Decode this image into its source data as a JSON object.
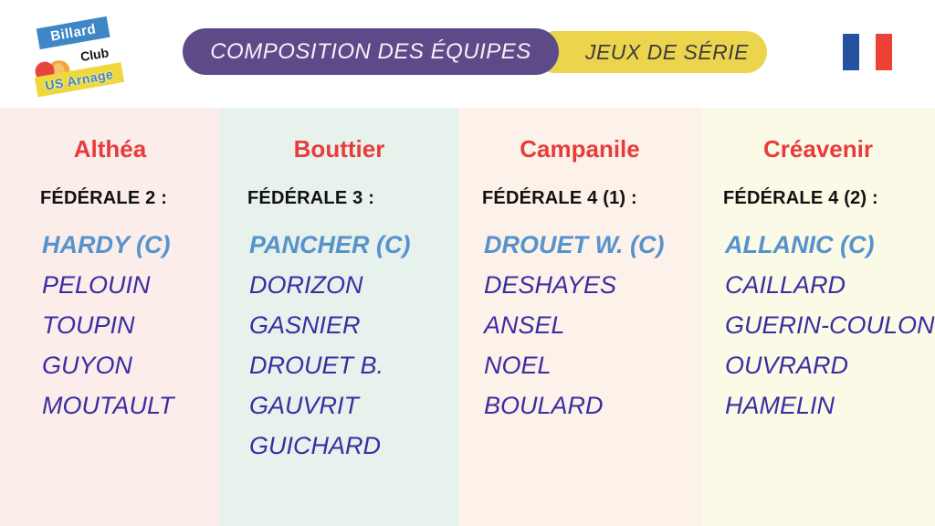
{
  "logo": {
    "line1": "Billard",
    "line2": "Club",
    "line3": "US Arnage",
    "band_blue_color": "#3e86c6",
    "band_yellow_color": "#efd83d",
    "ball_red_color": "#e6453f",
    "ball_orange_color": "#f2a43b"
  },
  "header": {
    "title": "COMPOSITION DES ÉQUIPES",
    "subtitle": "JEUX DE SÉRIE",
    "title_bg": "#5d4b89",
    "title_text_color": "#f5f0f6",
    "subtitle_bg": "#edd44d",
    "subtitle_text_color": "#3e3c40"
  },
  "flag": {
    "label": "france-flag",
    "blue": "#26519f",
    "white": "#ffffff",
    "red": "#ee4135"
  },
  "colors": {
    "team_name_red": "#e73c3c",
    "division_black": "#111111",
    "captain_blue": "#5693cd",
    "player_indigo": "#3a2ea4"
  },
  "teams": [
    {
      "name": "Althéa",
      "division": "FÉDÉRALE 2 :",
      "bg": "#fbedea",
      "captain": "HARDY (C)",
      "players": [
        "PELOUIN",
        "TOUPIN",
        "GUYON",
        "MOUTAULT"
      ]
    },
    {
      "name": "Bouttier",
      "division": "FÉDÉRALE 3 :",
      "bg": "#e7f2ec",
      "captain": "PANCHER (C)",
      "players": [
        "DORIZON",
        "GASNIER",
        "DROUET B.",
        "GAUVRIT",
        "GUICHARD"
      ]
    },
    {
      "name": "Campanile",
      "division": "FÉDÉRALE 4 (1) :",
      "bg": "#fdf2ea",
      "captain": "DROUET W. (C)",
      "players": [
        "DESHAYES",
        "ANSEL",
        "NOEL",
        "BOULARD"
      ]
    },
    {
      "name": "Créavenir",
      "division": "FÉDÉRALE 4 (2) :",
      "bg": "#fbfae7",
      "captain": "ALLANIC (C)",
      "players": [
        "CAILLARD",
        "GUERIN-COULON",
        "OUVRARD",
        "HAMELIN"
      ]
    }
  ]
}
